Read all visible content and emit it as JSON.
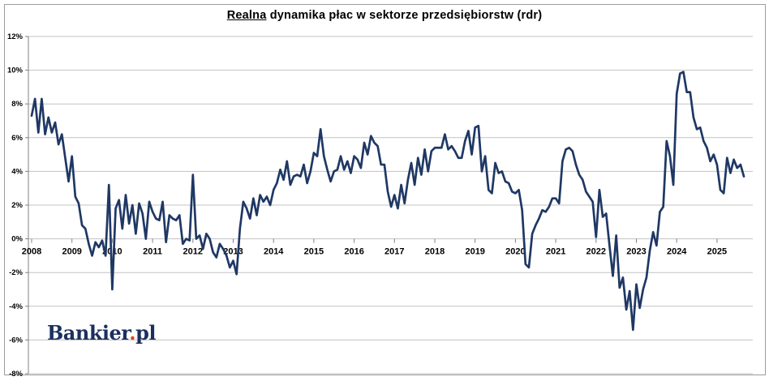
{
  "title": {
    "underlined_part": "Realna",
    "rest_part": " dynamika płac w sektorze przedsiębiorstw (rdr)"
  },
  "logo": {
    "name": "Bankier",
    "dot": ".",
    "suffix": "pl",
    "text_color": "#1c2f5e",
    "dot_color": "#e2451c"
  },
  "colors": {
    "line": "#1f3864",
    "grid": "#c3c3c3",
    "axis": "#808080",
    "label": "#000000",
    "background": "#ffffff"
  },
  "chart_data": {
    "type": "line",
    "title": "Realna dynamika płac w sektorze przedsiębiorstw (rdr)",
    "series_name": "realna dynamika płac rdr",
    "unit": "%",
    "frequency": "monthly",
    "x_start": "2008-01",
    "x_end": "2025-09",
    "ylim": [
      -8,
      12
    ],
    "y_tick_step": 2,
    "grid": true,
    "legend": false,
    "y_tick_labels": [
      "12%",
      "10%",
      "8%",
      "6%",
      "4%",
      "2%",
      "0%",
      "-2%",
      "-4%",
      "-6%",
      "-8%"
    ],
    "x_tick_labels": [
      "2008",
      "2009",
      "2010",
      "2011",
      "2012",
      "2013",
      "2014",
      "2015",
      "2016",
      "2017",
      "2018",
      "2019",
      "2020",
      "2021",
      "2022",
      "2023",
      "2024",
      "2025"
    ],
    "values": [
      7.3,
      8.3,
      6.3,
      8.3,
      6.2,
      7.2,
      6.3,
      6.9,
      5.6,
      6.2,
      4.8,
      3.4,
      4.9,
      2.5,
      2.1,
      0.8,
      0.6,
      -0.3,
      -1.0,
      -0.2,
      -0.5,
      -0.1,
      -1.0,
      3.2,
      -3.0,
      1.8,
      2.3,
      0.6,
      2.6,
      0.9,
      2.0,
      0.3,
      2.1,
      1.5,
      0.0,
      2.2,
      1.6,
      1.2,
      1.1,
      2.2,
      -0.2,
      1.4,
      1.2,
      1.1,
      1.4,
      -0.3,
      0.0,
      -0.1,
      3.8,
      0.0,
      0.2,
      -0.6,
      0.3,
      0.0,
      -0.8,
      -1.1,
      -0.3,
      -0.6,
      -1.0,
      -1.7,
      -1.3,
      -2.1,
      0.6,
      2.2,
      1.8,
      1.2,
      2.4,
      1.4,
      2.6,
      2.2,
      2.5,
      2.0,
      2.9,
      3.3,
      4.1,
      3.5,
      4.6,
      3.2,
      3.7,
      3.8,
      3.7,
      4.4,
      3.3,
      4.0,
      5.1,
      4.9,
      6.5,
      4.9,
      4.1,
      3.4,
      4.0,
      4.1,
      4.9,
      4.1,
      4.6,
      3.9,
      4.9,
      4.7,
      4.2,
      5.7,
      5.0,
      6.1,
      5.7,
      5.5,
      4.4,
      4.4,
      2.8,
      1.9,
      2.6,
      1.8,
      3.2,
      2.1,
      3.5,
      4.5,
      3.2,
      4.8,
      3.8,
      5.3,
      4.0,
      5.2,
      5.4,
      5.4,
      5.4,
      6.2,
      5.3,
      5.5,
      5.2,
      4.8,
      4.8,
      5.8,
      6.4,
      5.0,
      6.6,
      6.7,
      4.0,
      4.9,
      2.9,
      2.7,
      4.5,
      3.9,
      4.0,
      3.4,
      3.3,
      2.8,
      2.7,
      2.9,
      1.7,
      -1.5,
      -1.7,
      0.3,
      0.8,
      1.2,
      1.7,
      1.6,
      1.9,
      2.4,
      2.4,
      2.1,
      4.6,
      5.3,
      5.4,
      5.2,
      4.4,
      3.8,
      3.5,
      2.8,
      2.5,
      2.2,
      0.1,
      2.9,
      1.3,
      1.5,
      -0.4,
      -2.2,
      0.2,
      -2.9,
      -2.3,
      -4.2,
      -3.1,
      -5.4,
      -2.7,
      -4.1,
      -3.0,
      -2.3,
      -0.7,
      0.4,
      -0.4,
      1.6,
      1.9,
      5.8,
      4.9,
      3.2,
      8.6,
      9.8,
      9.9,
      8.7,
      8.7,
      7.2,
      6.5,
      6.6,
      5.8,
      5.4,
      4.6,
      5.0,
      4.4,
      2.9,
      2.7,
      4.8,
      3.9,
      4.7,
      4.2,
      4.4,
      3.7
    ]
  }
}
